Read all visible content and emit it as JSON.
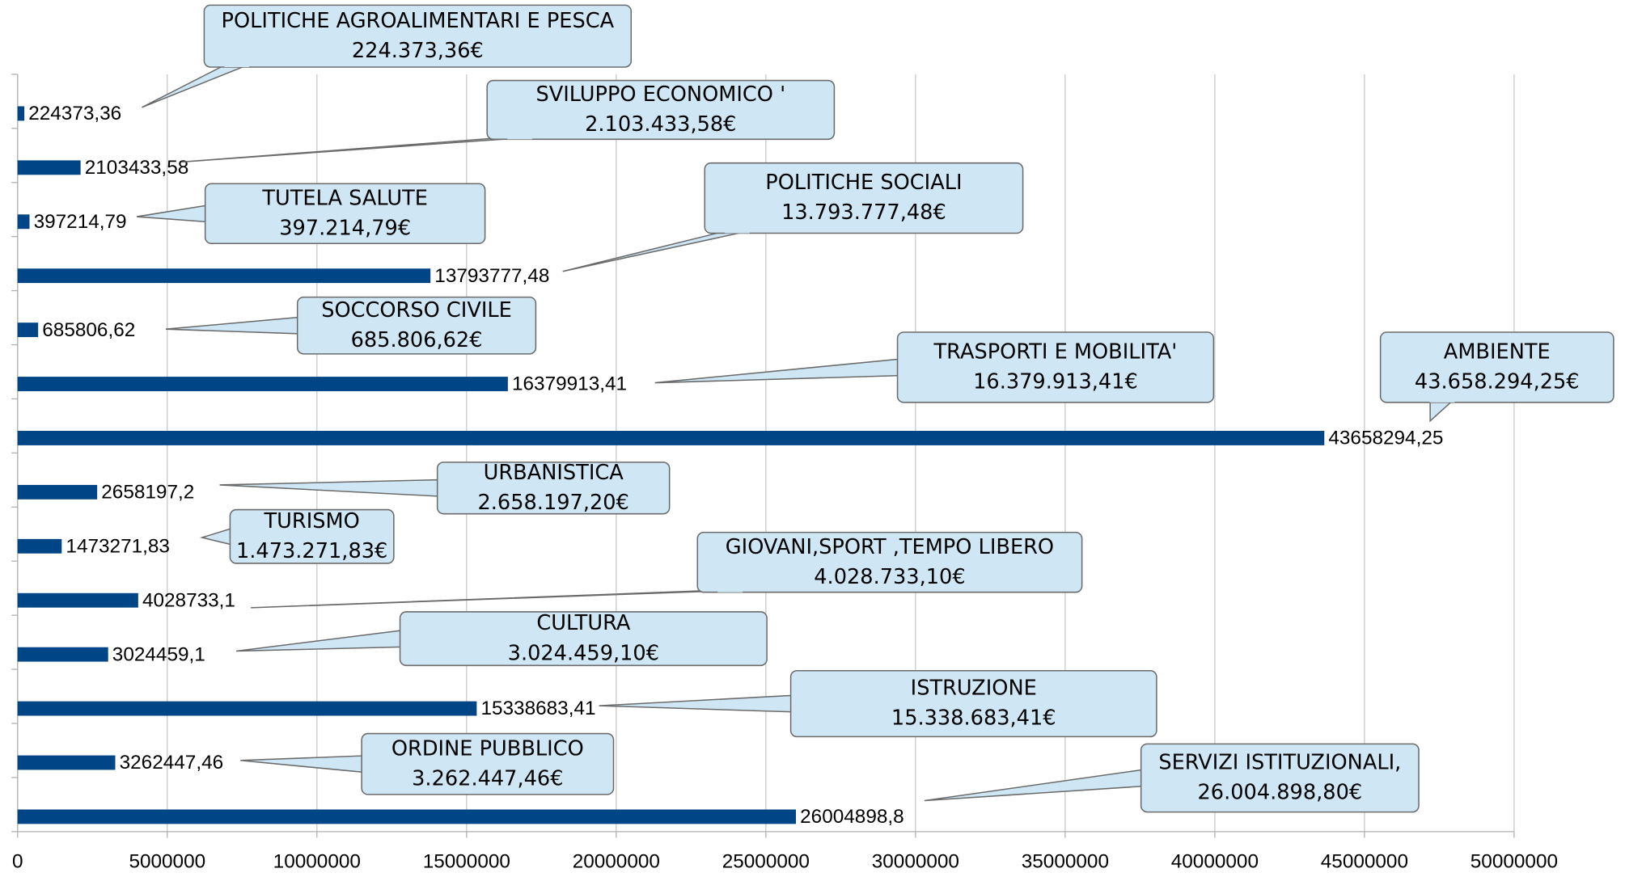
{
  "chart_data": {
    "type": "bar",
    "orientation": "horizontal",
    "categories": [
      "POLITICHE AGROALIMENTARI E PESCA",
      "SVILUPPO ECONOMICO '",
      "TUTELA SALUTE",
      "POLITICHE SOCIALI",
      "SOCCORSO CIVILE",
      "TRASPORTI E MOBILITA'",
      "AMBIENTE",
      "URBANISTICA",
      "TURISMO",
      "GIOVANI,SPORT ,TEMPO LIBERO",
      "CULTURA",
      "ISTRUZIONE",
      "ORDINE PUBBLICO",
      "SERVIZI ISTITUZIONALI,"
    ],
    "values": [
      224373.36,
      2103433.58,
      397214.79,
      13793777.48,
      685806.62,
      16379913.41,
      43658294.25,
      2658197.2,
      1473271.83,
      4028733.1,
      3024459.1,
      15338683.41,
      3262447.46,
      26004898.8
    ],
    "value_labels": [
      "224373,36",
      "2103433,58",
      "397214,79",
      "13793777,48",
      "685806,62",
      "16379913,41",
      "43658294,25",
      "2658197,2",
      "1473271,83",
      "4028733,1",
      "3024459,1",
      "15338683,41",
      "3262447,46",
      "26004898,8"
    ],
    "callout_labels": [
      "224.373,36€",
      "2.103.433,58€",
      "397.214,79€",
      "13.793.777,48€",
      "685.806,62€",
      "16.379.913,41€",
      "43.658.294,25€",
      "2.658.197,20€",
      "1.473.271,83€",
      "4.028.733,10€",
      "3.024.459,10€",
      "15.338.683,41€",
      "3.262.447,46€",
      "26.004.898,80€"
    ],
    "color": "#004586",
    "xlim": [
      0,
      50000000
    ],
    "xticks": [
      0,
      5000000,
      10000000,
      15000000,
      20000000,
      25000000,
      30000000,
      35000000,
      40000000,
      45000000,
      50000000
    ],
    "grid": true
  }
}
